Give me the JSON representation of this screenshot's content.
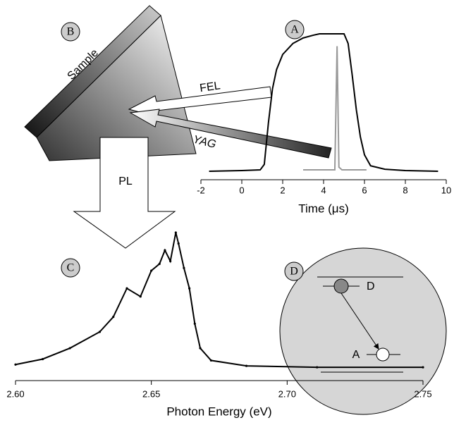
{
  "chart_data": [
    {
      "type": "line",
      "x_label": "Time (μs)",
      "xlim": [
        -2,
        10
      ],
      "xticks": [
        -2,
        0,
        2,
        4,
        6,
        8,
        10
      ],
      "ylim": [
        0,
        1
      ],
      "series": [
        {
          "color": "#000000",
          "x": [
            -1.6,
            0,
            0.9,
            1.1,
            1.3,
            1.5,
            1.7,
            2.0,
            2.5,
            3,
            3.5,
            3.8,
            5.0,
            5.2,
            5.4,
            5.6,
            5.8,
            6.0,
            6.3,
            7,
            8,
            9.6
          ],
          "values": [
            0,
            0.005,
            0.01,
            0.05,
            0.35,
            0.6,
            0.74,
            0.85,
            0.93,
            0.97,
            0.99,
            1,
            1,
            0.93,
            0.7,
            0.45,
            0.25,
            0.12,
            0.04,
            0.015,
            0.005,
            0
          ]
        },
        {
          "color": "#999999",
          "x": [
            3.0,
            4.55,
            4.66,
            4.75,
            4.9,
            6.1
          ],
          "values": [
            0.01,
            0.01,
            0.91,
            0.03,
            0.01,
            0.01
          ]
        }
      ]
    },
    {
      "type": "line",
      "x_label": "Photon Energy (eV)",
      "xlim": [
        2.6,
        2.75
      ],
      "xticks": [
        {
          "value": 2.6,
          "label": "2.60"
        },
        {
          "value": 2.65,
          "label": "2.65"
        },
        {
          "value": 2.7,
          "label": "2.70"
        },
        {
          "value": 2.75,
          "label": "2.75"
        }
      ],
      "ylim": [
        0,
        1
      ],
      "markers": true,
      "series": [
        {
          "color": "#000000",
          "x": [
            2.6,
            2.61,
            2.62,
            2.631,
            2.636,
            2.641,
            2.646,
            2.65,
            2.653,
            2.655,
            2.657,
            2.659,
            2.66,
            2.662,
            2.664,
            2.666,
            2.668,
            2.672,
            2.685,
            2.711,
            2.75
          ],
          "values": [
            0.03,
            0.07,
            0.15,
            0.27,
            0.38,
            0.59,
            0.53,
            0.72,
            0.77,
            0.87,
            0.79,
            1.0,
            0.92,
            0.74,
            0.59,
            0.33,
            0.15,
            0.06,
            0.02,
            0.01,
            0.01
          ]
        }
      ]
    }
  ],
  "diagram": {
    "panel_labels": [
      "B",
      "A",
      "C",
      "D"
    ],
    "sample": "Sample",
    "fel": "FEL",
    "yag": "YAG",
    "pl": "PL",
    "donor": "D",
    "acceptor": "A"
  }
}
